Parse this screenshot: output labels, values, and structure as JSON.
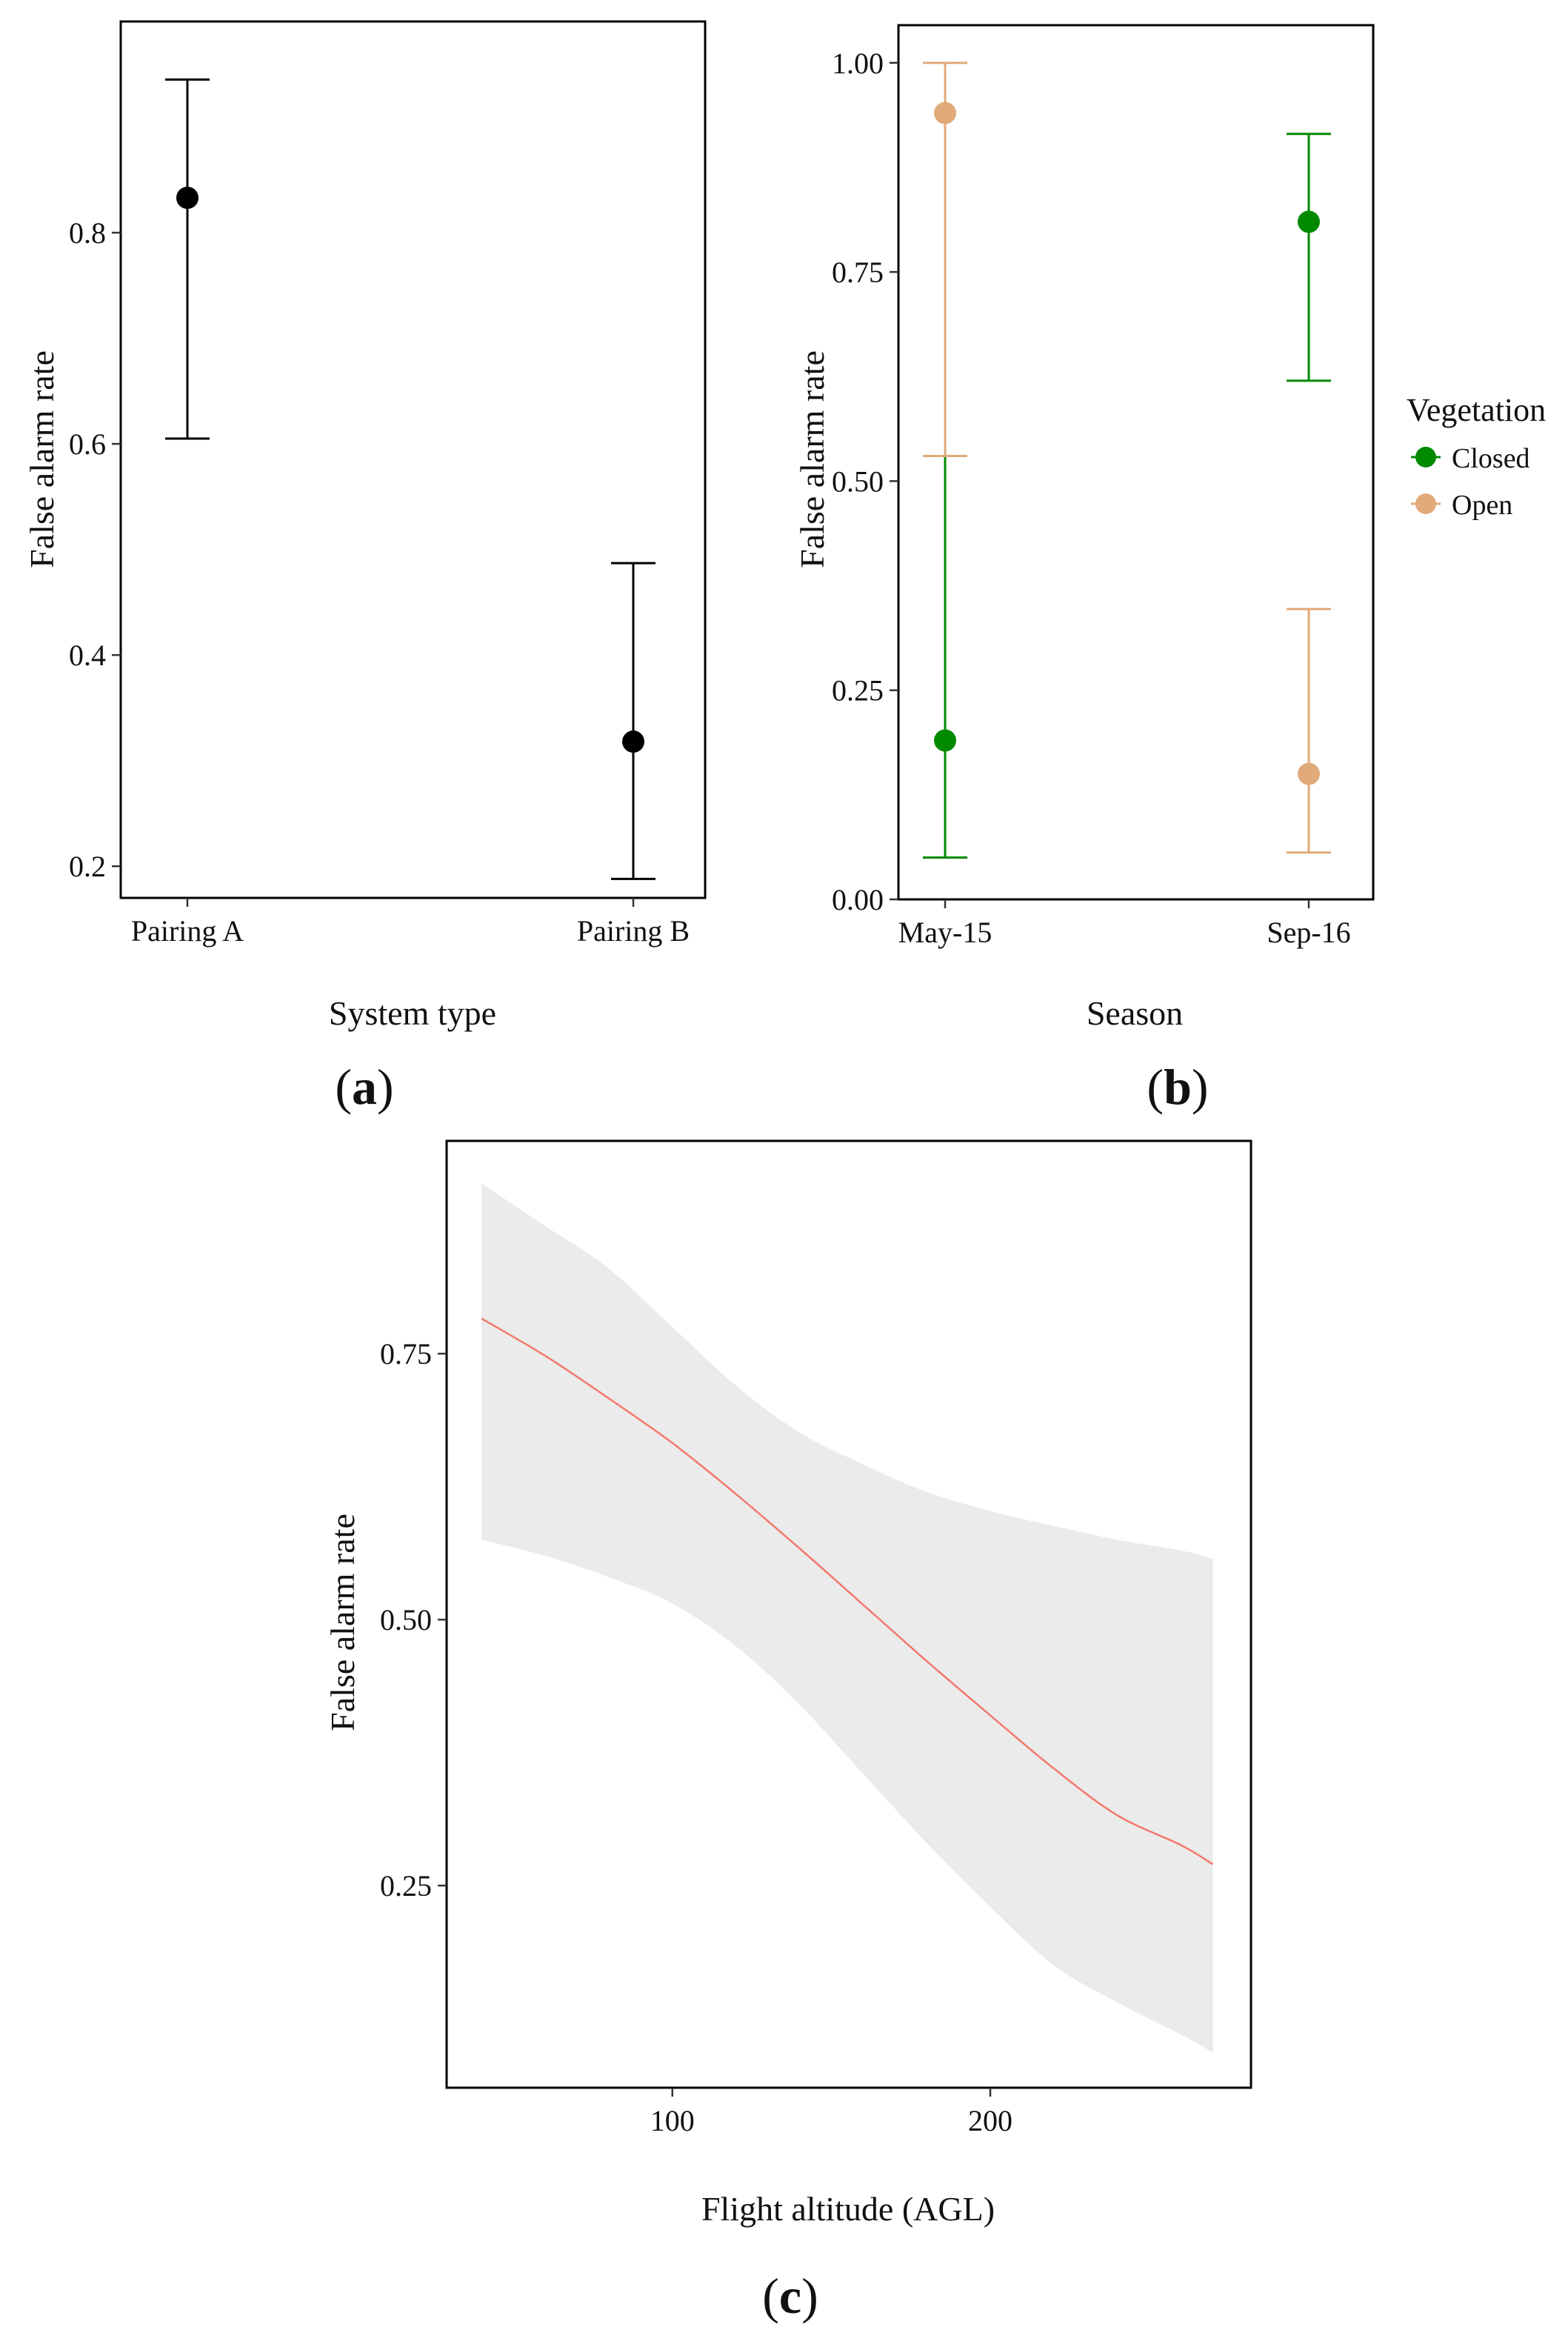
{
  "chart_data": [
    {
      "id": "a",
      "type": "errorbar",
      "panel_label": "a",
      "xlabel": "System type",
      "ylabel": "False alarm rate",
      "ylim": [
        0.17,
        1.0
      ],
      "yticks": [
        0.2,
        0.4,
        0.6,
        0.8
      ],
      "ytick_labels": [
        "0.2",
        "0.4",
        "0.6",
        "0.8"
      ],
      "categories": [
        "Pairing A",
        "Pairing B"
      ],
      "series": [
        {
          "name": "System type",
          "color": "#000000",
          "values": [
            0.833,
            0.318
          ],
          "lower": [
            0.605,
            0.188
          ],
          "upper": [
            0.945,
            0.487
          ]
        }
      ],
      "grid": false
    },
    {
      "id": "b",
      "type": "errorbar",
      "panel_label": "b",
      "xlabel": "Season",
      "ylabel": "False alarm rate",
      "ylim": [
        0.0,
        1.045
      ],
      "yticks": [
        0.0,
        0.25,
        0.5,
        0.75,
        1.0
      ],
      "ytick_labels": [
        "0.00",
        "0.25",
        "0.50",
        "0.75",
        "1.00"
      ],
      "categories": [
        "May-15",
        "Sep-16"
      ],
      "legend": {
        "title": "Vegetation",
        "position": "right"
      },
      "series": [
        {
          "name": "Closed",
          "color": "#008a00",
          "values": [
            0.19,
            0.81
          ],
          "lower": [
            0.05,
            0.62
          ],
          "upper": [
            0.53,
            0.915
          ]
        },
        {
          "name": "Open",
          "color": "#e0aa7a",
          "values": [
            0.94,
            0.15
          ],
          "lower": [
            0.53,
            0.056
          ],
          "upper": [
            1.0,
            0.347
          ]
        }
      ],
      "grid": false
    },
    {
      "id": "c",
      "type": "line",
      "panel_label": "c",
      "xlabel": "Flight altitude (AGL)",
      "ylabel": "False alarm rate",
      "xlim": [
        29,
        282
      ],
      "ylim": [
        0.06,
        0.95
      ],
      "xticks": [
        100,
        200
      ],
      "xtick_labels": [
        "100",
        "200"
      ],
      "yticks": [
        0.25,
        0.5,
        0.75
      ],
      "ytick_labels": [
        "0.25",
        "0.50",
        "0.75"
      ],
      "line_color": "#f4786c",
      "band_color": "#ebebeb",
      "x": [
        40,
        60,
        80,
        100,
        120,
        140,
        160,
        180,
        200,
        220,
        240,
        260,
        270
      ],
      "y": [
        0.783,
        0.748,
        0.708,
        0.666,
        0.618,
        0.567,
        0.514,
        0.461,
        0.41,
        0.36,
        0.316,
        0.288,
        0.27
      ],
      "lower": [
        0.575,
        0.56,
        0.54,
        0.515,
        0.475,
        0.42,
        0.355,
        0.29,
        0.23,
        0.175,
        0.14,
        0.11,
        0.093
      ],
      "upper": [
        0.91,
        0.87,
        0.83,
        0.775,
        0.72,
        0.676,
        0.646,
        0.62,
        0.602,
        0.588,
        0.575,
        0.565,
        0.557
      ],
      "grid": false
    }
  ]
}
